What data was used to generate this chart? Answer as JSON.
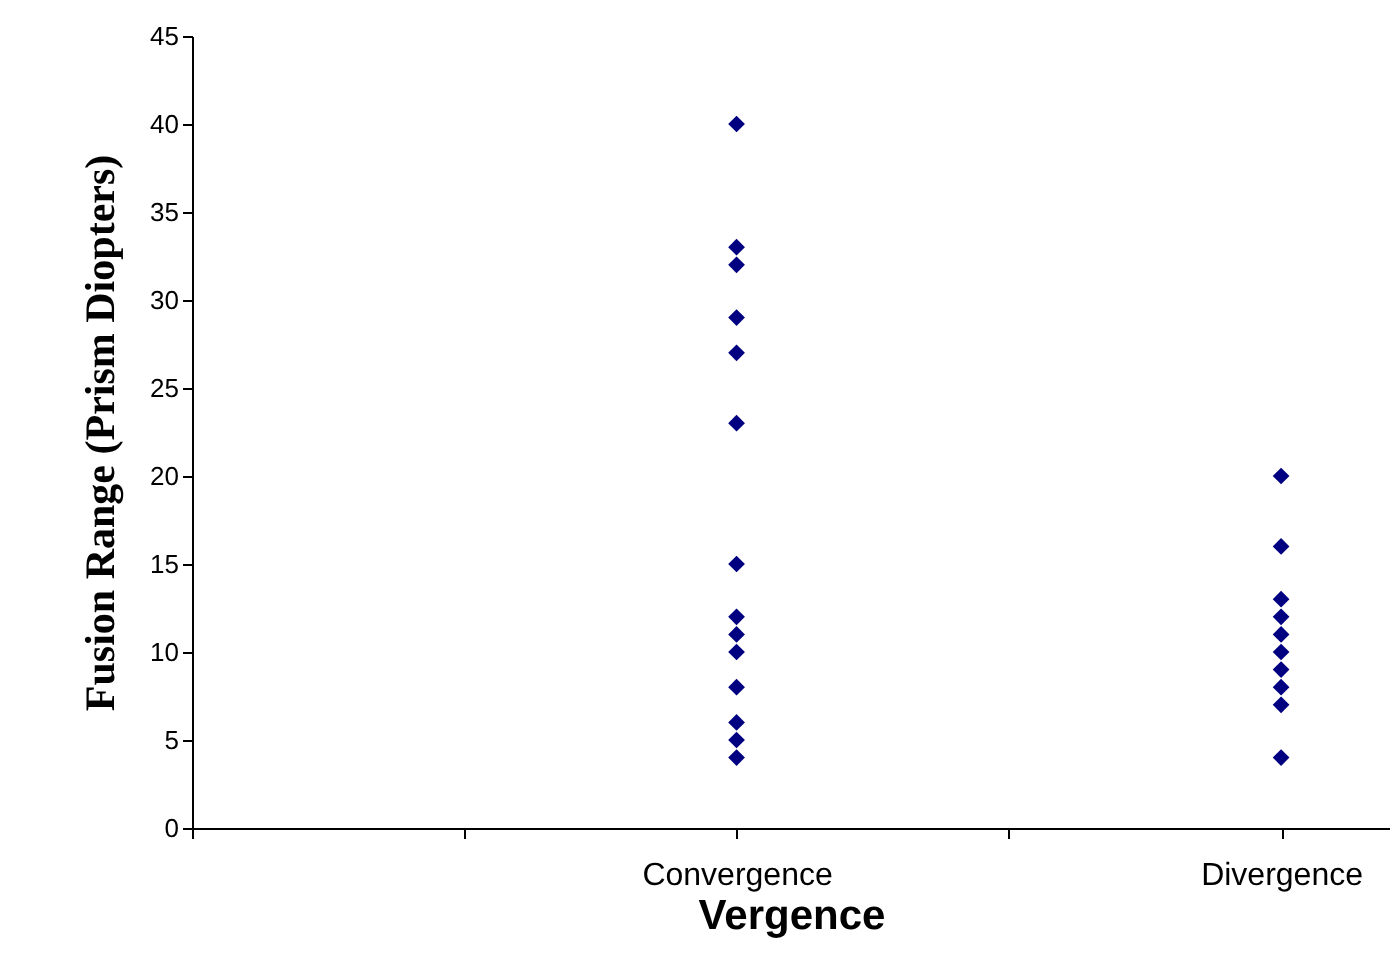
{
  "chart_data": {
    "type": "scatter",
    "xlabel": "Vergence",
    "ylabel": "Fusion Range (Prism Diopters)",
    "categories": [
      null,
      "Convergence",
      "Divergence"
    ],
    "series": [
      {
        "color": "#000080",
        "x": [
          "Convergence",
          "Convergence",
          "Convergence",
          "Convergence",
          "Convergence",
          "Convergence",
          "Convergence",
          "Convergence",
          "Convergence",
          "Convergence",
          "Convergence",
          "Convergence",
          "Convergence",
          "Convergence"
        ],
        "values": [
          40,
          33,
          32,
          29,
          27,
          23,
          15,
          12,
          11,
          10,
          8,
          6,
          5,
          4
        ]
      },
      {
        "color": "#000080",
        "x": [
          "Divergence",
          "Divergence",
          "Divergence",
          "Divergence",
          "Divergence",
          "Divergence",
          "Divergence",
          "Divergence",
          "Divergence",
          "Divergence"
        ],
        "values": [
          20,
          16,
          13,
          12,
          11,
          10,
          9,
          8,
          7,
          4
        ]
      }
    ],
    "marker": "diamond",
    "ylim": [
      0,
      45
    ],
    "yticks": [
      0,
      5,
      10,
      15,
      20,
      25,
      30,
      35,
      40,
      45
    ],
    "grid": false
  }
}
